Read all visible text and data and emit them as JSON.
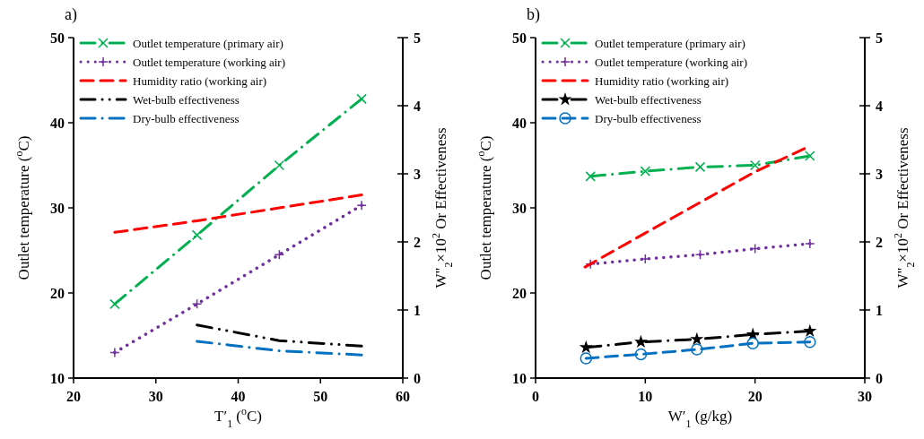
{
  "chart_data": [
    {
      "type": "line",
      "title": "a)",
      "xlabel": "T′$_{1}$ ($^{o}$C)",
      "ylabel": "Outlet temperature ($^{o}$C)",
      "y2label": "W\"$_{2}$×10$^{2}$ Or Effectiveness",
      "xlim": [
        20,
        60
      ],
      "xticks": [
        20,
        30,
        40,
        50,
        60
      ],
      "ylim": [
        10,
        50
      ],
      "yticks": [
        10,
        20,
        30,
        40,
        50
      ],
      "y2lim": [
        0,
        5
      ],
      "y2ticks": [
        0,
        1,
        2,
        3,
        4,
        5
      ],
      "grid": false,
      "legend": "top left",
      "series": [
        {
          "name": "Outlet temperature (primary air)",
          "color": "#00b050",
          "x": [
            25,
            35,
            45,
            55
          ],
          "values": [
            18.7,
            26.8,
            35,
            42.8
          ],
          "marker": "cross",
          "line_style": "dashdot"
        },
        {
          "name": "Outlet temperature (working air)",
          "color": "#7030a0",
          "x": [
            25,
            35,
            45,
            55
          ],
          "values": [
            13.0,
            18.7,
            24.5,
            30.3
          ],
          "marker": "plus",
          "line_style": "dotted"
        },
        {
          "name": "Humidity ratio (working air)",
          "color": "#ff0000",
          "x": [
            25,
            35,
            45,
            55
          ],
          "values": [
            2.14,
            2.31,
            2.5,
            2.69
          ],
          "axis": "y2",
          "marker": "none",
          "line_style": "dashed"
        },
        {
          "name": "Wet-bulb effectiveness",
          "color": "#000000",
          "x": [
            35,
            45,
            55
          ],
          "values": [
            0.78,
            0.55,
            0.47
          ],
          "axis": "y2",
          "marker": "none",
          "line_style": "dashdotdot"
        },
        {
          "name": "Dry-bulb effectiveness",
          "color": "#0070c0",
          "x": [
            35,
            45,
            55
          ],
          "values": [
            0.54,
            0.4,
            0.34
          ],
          "axis": "y2",
          "marker": "none",
          "line_style": "dashdot"
        }
      ]
    },
    {
      "type": "line",
      "title": "b)",
      "xlabel": "W′$_{1}$ (g/kg)",
      "ylabel": "Outlet temperature ($^{o}$C)",
      "y2label": "W\"$_{2}$×10$^{2}$ Or Effectiveness",
      "xlim": [
        0,
        30
      ],
      "xticks": [
        0,
        10,
        20,
        30
      ],
      "ylim": [
        10,
        50
      ],
      "yticks": [
        10,
        20,
        30,
        40,
        50
      ],
      "y2lim": [
        0,
        5
      ],
      "y2ticks": [
        0,
        1,
        2,
        3,
        4,
        5
      ],
      "grid": false,
      "legend": "top left",
      "series": [
        {
          "name": "Outlet temperature (primary air)",
          "color": "#00b050",
          "x": [
            5,
            10,
            15,
            20,
            25
          ],
          "values": [
            33.7,
            34.3,
            34.8,
            35.0,
            36.1
          ],
          "marker": "cross",
          "line_style": "dashdot"
        },
        {
          "name": "Outlet temperature (working air)",
          "color": "#7030a0",
          "x": [
            5,
            10,
            15,
            20,
            25
          ],
          "values": [
            23.4,
            24.0,
            24.5,
            25.2,
            25.8
          ],
          "marker": "plus",
          "line_style": "dotted"
        },
        {
          "name": "Humidity ratio (working air)",
          "color": "#ff0000",
          "x": [
            4.5,
            10,
            15,
            20,
            24.5
          ],
          "values": [
            1.63,
            2.13,
            2.58,
            3.03,
            3.37
          ],
          "axis": "y2",
          "marker": "none",
          "line_style": "dashed"
        },
        {
          "name": "Wet-bulb effectiveness",
          "color": "#000000",
          "x": [
            4.6,
            9.6,
            14.7,
            19.8,
            25
          ],
          "values": [
            0.45,
            0.53,
            0.57,
            0.64,
            0.69
          ],
          "axis": "y2",
          "marker": "star",
          "line_style": "dashdot"
        },
        {
          "name": "Dry-bulb effectiveness",
          "color": "#0070c0",
          "x": [
            4.6,
            9.6,
            14.7,
            19.8,
            25
          ],
          "values": [
            0.29,
            0.35,
            0.42,
            0.51,
            0.53
          ],
          "axis": "y2",
          "marker": "circle",
          "line_style": "dashed"
        }
      ]
    }
  ]
}
